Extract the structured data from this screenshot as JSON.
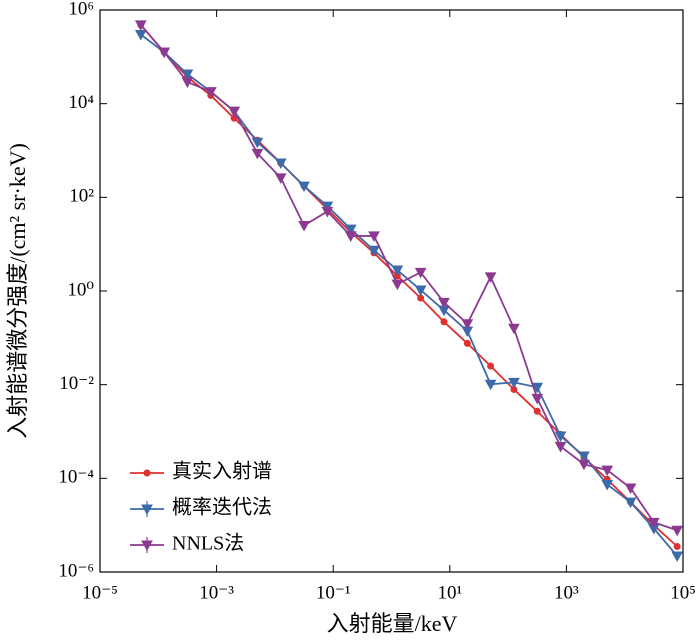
{
  "chart_data": {
    "type": "line",
    "x_label": "入射能量/keV",
    "y_label": "入射能谱微分强度/(cm² sr·keV)",
    "x_log": true,
    "y_log": true,
    "legend": "lower-left",
    "x": [
      5.01e-05,
      0.000126,
      0.000316,
      0.000794,
      0.002,
      0.00501,
      0.0126,
      0.0316,
      0.0794,
      0.2,
      0.501,
      1.26,
      3.16,
      7.94,
      20,
      50.1,
      126,
      316,
      794,
      2000,
      5010,
      12600,
      31600,
      79400
    ],
    "series": [
      {
        "name": "真实入射谱",
        "color": "#e03030",
        "marker": "circle",
        "values": [
          480000,
          126000,
          37000,
          15000,
          4900,
          1660,
          540,
          174,
          56,
          18,
          6.5,
          2.1,
          0.71,
          0.22,
          0.076,
          0.025,
          0.0079,
          0.0027,
          0.00087,
          0.00028,
          9.5e-05,
          3.1e-05,
          1e-05,
          3.5e-06
        ]
      },
      {
        "name": "概率迭代法",
        "color": "#3d6aa8",
        "marker": "triangle-down",
        "values": [
          300000,
          126000,
          43000,
          18000,
          6900,
          1500,
          540,
          174,
          65,
          21,
          7.4,
          2.8,
          1.05,
          0.39,
          0.14,
          0.0102,
          0.0112,
          0.0088,
          0.0008,
          0.0003,
          7.4e-05,
          3.1e-05,
          8.5e-06,
          2.2e-06
        ]
      },
      {
        "name": "NNLS法",
        "color": "#8b3a8f",
        "marker": "triangle-down",
        "values": [
          480000,
          126000,
          29000,
          18000,
          6900,
          870,
          260,
          25,
          50,
          15,
          15,
          1.4,
          2.5,
          0.57,
          0.2,
          2.0,
          0.16,
          0.0051,
          0.00048,
          0.0002,
          0.00015,
          6.2e-05,
          1.15e-05,
          7.8e-06
        ]
      }
    ],
    "xlim": [
      1e-05,
      100000.0
    ],
    "xticks": [
      {
        "value": 1e-05,
        "label": "10⁻⁵"
      },
      {
        "value": 0.001,
        "label": "10⁻³"
      },
      {
        "value": 0.1,
        "label": "10⁻¹"
      },
      {
        "value": 10,
        "label": "10¹"
      },
      {
        "value": 1000,
        "label": "10³"
      },
      {
        "value": 100000,
        "label": "10⁵"
      }
    ],
    "ylim": [
      1e-06,
      1000000.0
    ],
    "yticks": [
      {
        "value": 1e-06,
        "label": "10⁻⁶"
      },
      {
        "value": 0.0001,
        "label": "10⁻⁴"
      },
      {
        "value": 0.01,
        "label": "10⁻²"
      },
      {
        "value": 1,
        "label": "10⁰"
      },
      {
        "value": 100,
        "label": "10²"
      },
      {
        "value": 10000,
        "label": "10⁴"
      },
      {
        "value": 1000000,
        "label": "10⁶"
      }
    ]
  }
}
